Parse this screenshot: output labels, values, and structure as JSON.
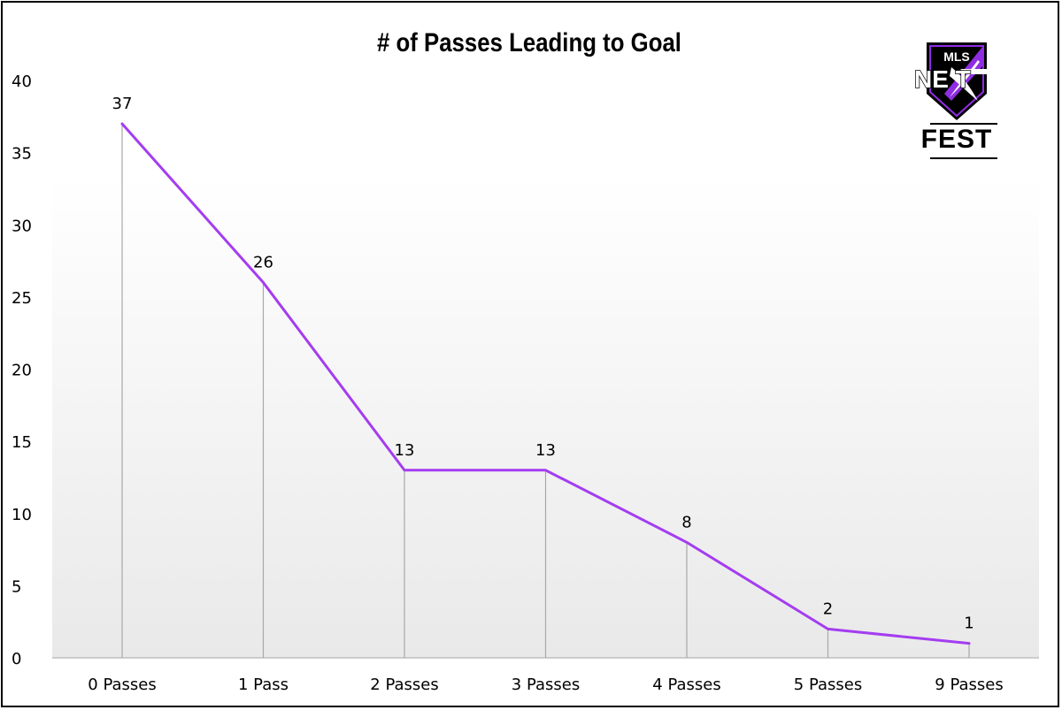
{
  "chart_data": {
    "type": "line",
    "title": "# of Passes Leading to Goal",
    "categories": [
      "0 Passes",
      "1 Pass",
      "2 Passes",
      "3 Passes",
      "4 Passes",
      "5 Passes",
      "9 Passes"
    ],
    "values": [
      37,
      26,
      13,
      13,
      8,
      2,
      1
    ],
    "y_ticks": [
      "0",
      "5",
      "10",
      "15",
      "20",
      "25",
      "30",
      "35",
      "40"
    ],
    "ylim": [
      0,
      40
    ],
    "xlabel": "",
    "ylabel": "",
    "grid": false,
    "drop_lines": true,
    "data_labels": true,
    "colors": {
      "line": "#a43df0",
      "drop_line": "#a8a8a8",
      "axis": "#bfbfbf",
      "text": "#000000"
    }
  },
  "logo": {
    "top_text": "MLS",
    "middle_text": "NE T",
    "bottom_text": "FEST",
    "accent_color": "#8f2de2"
  }
}
